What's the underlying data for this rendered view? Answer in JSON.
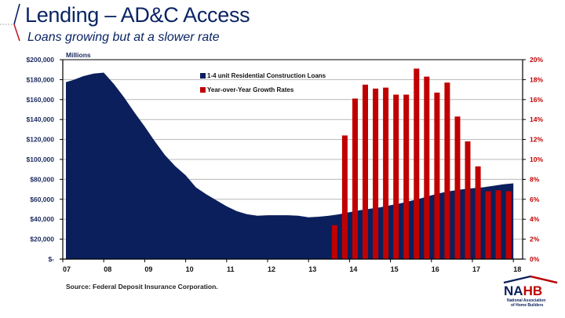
{
  "slide": {
    "title": "Lending – AD&C Access",
    "subtitle": "Loans growing but at a slower rate",
    "source": "Source: Federal Deposit Insurance Corporation.",
    "logo": {
      "text": "NAHB",
      "line1": "National Association",
      "line2": "of Home Builders"
    },
    "colors": {
      "navy": "#0b1f5c",
      "red": "#c00000",
      "title": "#0a2463"
    }
  },
  "chart_data": {
    "type": "area+bar",
    "title": "",
    "left_axis": {
      "label": "Millions",
      "ylim": [
        0,
        200000
      ],
      "ticks": [
        "$-",
        "$20,000",
        "$40,000",
        "$60,000",
        "$80,000",
        "$100,000",
        "$120,000",
        "$140,000",
        "$160,000",
        "$180,000",
        "$200,000"
      ],
      "tick_values": [
        0,
        20000,
        40000,
        60000,
        80000,
        100000,
        120000,
        140000,
        160000,
        180000,
        200000
      ]
    },
    "right_axis": {
      "ylim": [
        0,
        20
      ],
      "ticks": [
        "0%",
        "2%",
        "4%",
        "6%",
        "8%",
        "10%",
        "12%",
        "14%",
        "16%",
        "18%",
        "20%"
      ],
      "tick_values": [
        0,
        2,
        4,
        6,
        8,
        10,
        12,
        14,
        16,
        18,
        20
      ]
    },
    "x_axis": {
      "ticks": [
        "07",
        "08",
        "09",
        "10",
        "11",
        "12",
        "13",
        "14",
        "15",
        "16",
        "17",
        "18"
      ],
      "tick_values": [
        2007,
        2008,
        2009,
        2010,
        2011,
        2012,
        2013,
        2014,
        2015,
        2016,
        2017,
        2018
      ],
      "xlim": [
        2007,
        2018.1
      ]
    },
    "grid": true,
    "legend": {
      "placement": "top-center",
      "entries": [
        "1-4 unit Residential Construction Loans",
        "Year-over-Year Growth Rates"
      ]
    },
    "series": [
      {
        "name": "1-4 unit Residential Construction Loans",
        "type": "area",
        "axis": "left",
        "color": "#0b1f5c",
        "x": [
          2007.0,
          2007.25,
          2007.5,
          2007.75,
          2008.0,
          2008.25,
          2008.5,
          2008.75,
          2009.0,
          2009.25,
          2009.5,
          2009.75,
          2010.0,
          2010.25,
          2010.5,
          2010.75,
          2011.0,
          2011.25,
          2011.5,
          2011.75,
          2012.0,
          2012.25,
          2012.5,
          2012.75,
          2013.0,
          2013.25,
          2013.5,
          2013.75,
          2014.0,
          2014.25,
          2014.5,
          2014.75,
          2015.0,
          2015.25,
          2015.5,
          2015.75,
          2016.0,
          2016.25,
          2016.5,
          2016.75,
          2017.0,
          2017.25,
          2017.5,
          2017.75,
          2018.0
        ],
        "values": [
          177500,
          179500,
          183500,
          186000,
          187000,
          175500,
          162000,
          147000,
          133000,
          118000,
          104000,
          93000,
          84000,
          72000,
          65000,
          59000,
          53000,
          48000,
          45000,
          43500,
          44000,
          44000,
          44000,
          43500,
          42000,
          42500,
          43500,
          45000,
          47000,
          49000,
          50500,
          52000,
          54000,
          56000,
          58500,
          61000,
          64000,
          66500,
          68500,
          70000,
          71000,
          72000,
          73500,
          75000,
          76000
        ]
      },
      {
        "name": "Year-over-Year Growth Rates",
        "type": "bar",
        "axis": "right",
        "color": "#c00000",
        "x": [
          2013.75,
          2014.0,
          2014.25,
          2014.5,
          2014.75,
          2015.0,
          2015.25,
          2015.5,
          2015.75,
          2016.0,
          2016.25,
          2016.5,
          2016.75,
          2017.0,
          2017.25,
          2017.5,
          2017.75,
          2018.0
        ],
        "values": [
          3.4,
          12.4,
          16.1,
          17.5,
          17.1,
          17.2,
          16.5,
          16.5,
          19.1,
          18.3,
          16.7,
          17.7,
          14.3,
          11.8,
          9.3,
          6.8,
          6.9,
          6.8
        ]
      }
    ]
  }
}
